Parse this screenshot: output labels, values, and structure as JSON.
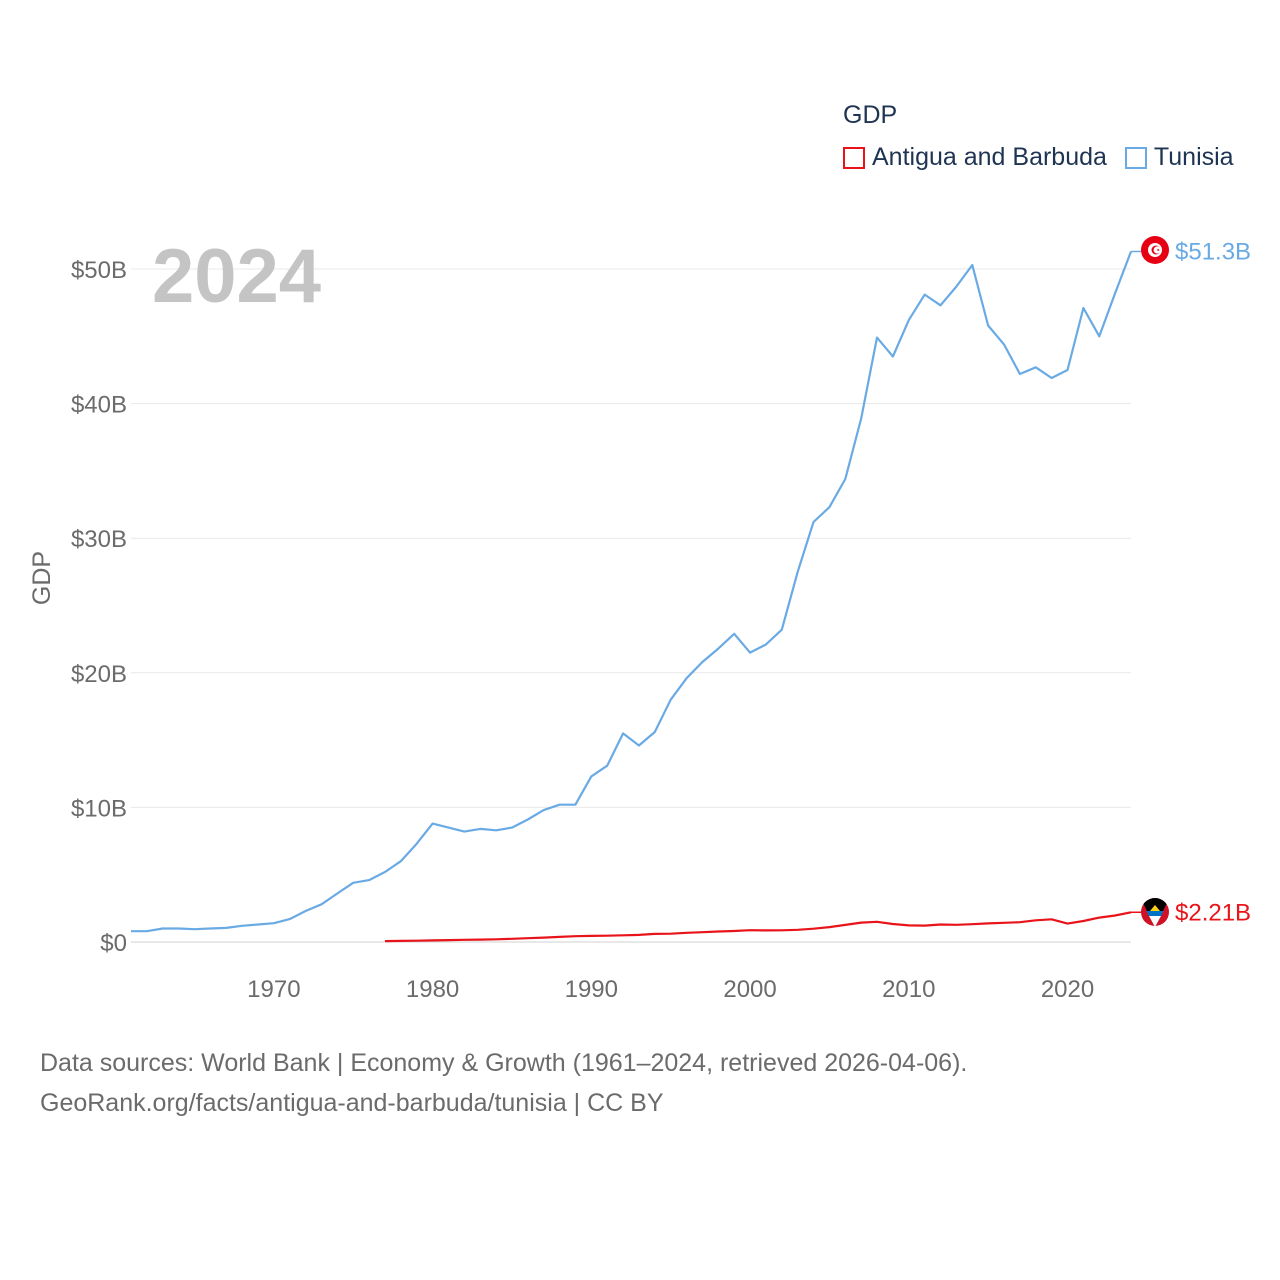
{
  "legend": {
    "title": "GDP",
    "items": [
      {
        "label": "Antigua and Barbuda",
        "color": "#e8141a"
      },
      {
        "label": "Tunisia",
        "color": "#6aaae4"
      }
    ]
  },
  "footer": {
    "line1": "Data sources: World Bank | Economy & Growth (1961–2024, retrieved 2026-04-06).",
    "line2": "GeoRank.org/facts/antigua-and-barbuda/tunisia | CC BY"
  },
  "chart_data": {
    "type": "line",
    "year_label": "2024",
    "ylabel": "GDP",
    "xlabel": "",
    "xlim": [
      1961,
      2024
    ],
    "ylim": [
      0,
      50
    ],
    "x_ticks": [
      1970,
      1980,
      1990,
      2000,
      2010,
      2020
    ],
    "x_tick_labels": [
      "1970",
      "1980",
      "1990",
      "2000",
      "2010",
      "2020"
    ],
    "y_ticks": [
      0,
      10,
      20,
      30,
      40,
      50
    ],
    "y_tick_labels": [
      "$0",
      "$10B",
      "$20B",
      "$30B",
      "$40B",
      "$50B"
    ],
    "grid": true,
    "series": [
      {
        "name": "Tunisia",
        "color": "#6aaae4",
        "end_label": "$51.3B",
        "x": [
          1961,
          1962,
          1963,
          1964,
          1965,
          1966,
          1967,
          1968,
          1969,
          1970,
          1971,
          1972,
          1973,
          1974,
          1975,
          1976,
          1977,
          1978,
          1979,
          1980,
          1981,
          1982,
          1983,
          1984,
          1985,
          1986,
          1987,
          1988,
          1989,
          1990,
          1991,
          1992,
          1993,
          1994,
          1995,
          1996,
          1997,
          1998,
          1999,
          2000,
          2001,
          2002,
          2003,
          2004,
          2005,
          2006,
          2007,
          2008,
          2009,
          2010,
          2011,
          2012,
          2013,
          2014,
          2015,
          2016,
          2017,
          2018,
          2019,
          2020,
          2021,
          2022,
          2023,
          2024
        ],
        "values": [
          0.8,
          0.8,
          1.0,
          1.0,
          0.95,
          1.0,
          1.05,
          1.2,
          1.3,
          1.4,
          1.7,
          2.3,
          2.8,
          3.6,
          4.4,
          4.6,
          5.2,
          6.0,
          7.3,
          8.8,
          8.5,
          8.2,
          8.4,
          8.3,
          8.5,
          9.1,
          9.8,
          10.2,
          10.2,
          12.3,
          13.1,
          15.5,
          14.6,
          15.6,
          18.0,
          19.6,
          20.8,
          21.8,
          22.9,
          21.5,
          22.1,
          23.2,
          27.5,
          31.2,
          32.3,
          34.4,
          38.9,
          44.9,
          43.5,
          46.2,
          48.1,
          47.3,
          48.7,
          50.3,
          45.8,
          44.4,
          42.2,
          42.7,
          41.9,
          42.5,
          47.1,
          45.0,
          48.2,
          51.3
        ]
      },
      {
        "name": "Antigua and Barbuda",
        "color": "#e8141a",
        "end_label": "$2.21B",
        "x": [
          1977,
          1978,
          1979,
          1980,
          1981,
          1982,
          1983,
          1984,
          1985,
          1986,
          1987,
          1988,
          1989,
          1990,
          1991,
          1992,
          1993,
          1994,
          1995,
          1996,
          1997,
          1998,
          1999,
          2000,
          2001,
          2002,
          2003,
          2004,
          2005,
          2006,
          2007,
          2008,
          2009,
          2010,
          2011,
          2012,
          2013,
          2014,
          2015,
          2016,
          2017,
          2018,
          2019,
          2020,
          2021,
          2022,
          2023,
          2024
        ],
        "values": [
          0.07,
          0.08,
          0.1,
          0.12,
          0.14,
          0.16,
          0.18,
          0.2,
          0.24,
          0.28,
          0.33,
          0.38,
          0.43,
          0.45,
          0.47,
          0.5,
          0.53,
          0.6,
          0.62,
          0.68,
          0.73,
          0.78,
          0.82,
          0.88,
          0.86,
          0.87,
          0.91,
          0.99,
          1.11,
          1.27,
          1.44,
          1.5,
          1.34,
          1.23,
          1.22,
          1.3,
          1.28,
          1.32,
          1.38,
          1.43,
          1.47,
          1.61,
          1.69,
          1.37,
          1.56,
          1.81,
          1.97,
          2.21
        ]
      }
    ]
  }
}
